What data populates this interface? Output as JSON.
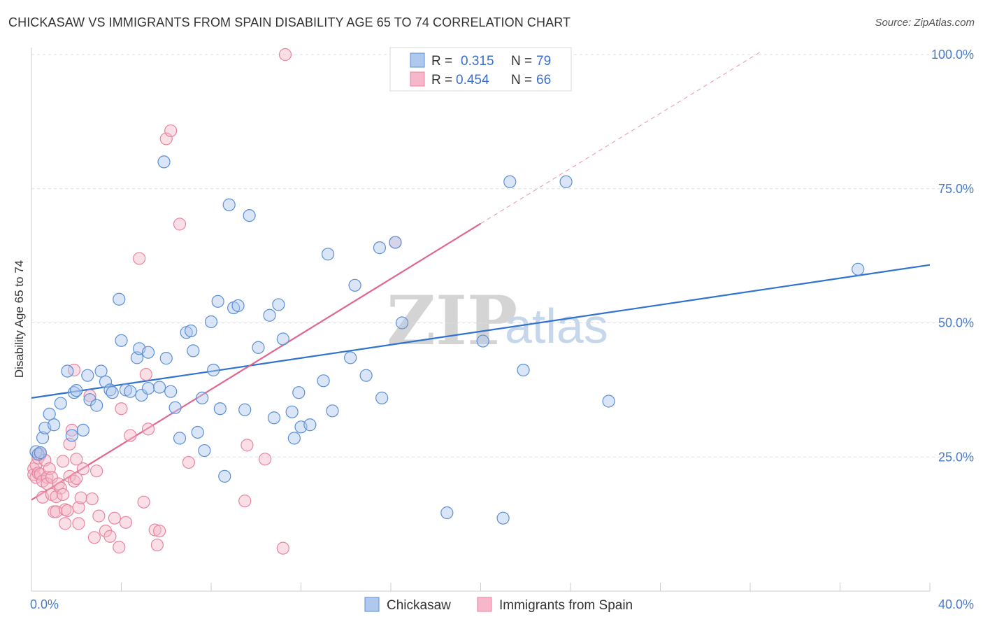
{
  "title": "CHICKASAW VS IMMIGRANTS FROM SPAIN DISABILITY AGE 65 TO 74 CORRELATION CHART",
  "source": "Source: ZipAtlas.com",
  "watermark": {
    "zip": "ZIP",
    "atlas": "atlas"
  },
  "colors": {
    "blue_fill": "#aec8ee",
    "blue_stroke": "#5b8fd6",
    "blue_line": "#2f72d0",
    "pink_fill": "#f5b7c9",
    "pink_stroke": "#e8859f",
    "pink_line": "#e0668d",
    "tick_text": "#4a7cc9",
    "grid": "#dddddd"
  },
  "legend": {
    "rows": [
      {
        "r_label": "R = ",
        "r_value": "0.315",
        "n_label": "N = ",
        "n_value": "79"
      },
      {
        "r_label": "R = ",
        "r_value": "0.454",
        "n_label": "N = ",
        "n_value": "66"
      }
    ]
  },
  "bottom_legend": [
    "Chickasaw",
    "Immigrants from Spain"
  ],
  "chart_data": {
    "type": "scatter",
    "title": "CHICKASAW VS IMMIGRANTS FROM SPAIN DISABILITY AGE 65 TO 74 CORRELATION CHART",
    "xlabel": "",
    "ylabel": "Disability Age 65 to 74",
    "xlim": [
      0,
      40
    ],
    "ylim": [
      0,
      100
    ],
    "x_tick_labels": [
      {
        "value": 0,
        "label": "0.0%"
      },
      {
        "value": 40,
        "label": "40.0%"
      }
    ],
    "y_tick_labels": [
      {
        "value": 25,
        "label": "25.0%"
      },
      {
        "value": 50,
        "label": "50.0%"
      },
      {
        "value": 75,
        "label": "75.0%"
      },
      {
        "value": 100,
        "label": "100.0%"
      }
    ],
    "series": [
      {
        "name": "Chickasaw",
        "color": "blue",
        "R": 0.315,
        "N": 79,
        "trend": {
          "x0": 0,
          "y0": 36.0,
          "x1": 40,
          "y1": 60.8
        },
        "points": [
          [
            0.2,
            26.0
          ],
          [
            0.3,
            25.5
          ],
          [
            0.4,
            25.8
          ],
          [
            0.5,
            28.6
          ],
          [
            0.6,
            30.4
          ],
          [
            0.8,
            33.0
          ],
          [
            1.0,
            31.0
          ],
          [
            1.3,
            35.0
          ],
          [
            1.6,
            41.0
          ],
          [
            1.8,
            29.0
          ],
          [
            1.9,
            37.0
          ],
          [
            2.0,
            37.4
          ],
          [
            2.3,
            30.0
          ],
          [
            2.5,
            40.2
          ],
          [
            2.6,
            35.7
          ],
          [
            2.9,
            34.6
          ],
          [
            3.1,
            41.0
          ],
          [
            3.3,
            39.0
          ],
          [
            3.5,
            37.5
          ],
          [
            3.6,
            37.0
          ],
          [
            3.9,
            54.4
          ],
          [
            4.0,
            46.7
          ],
          [
            4.2,
            37.5
          ],
          [
            4.4,
            37.2
          ],
          [
            4.7,
            43.5
          ],
          [
            4.8,
            45.2
          ],
          [
            4.9,
            36.5
          ],
          [
            5.2,
            37.8
          ],
          [
            5.2,
            44.5
          ],
          [
            5.7,
            38.0
          ],
          [
            5.9,
            80.0
          ],
          [
            6.0,
            43.4
          ],
          [
            6.2,
            37.2
          ],
          [
            6.4,
            34.2
          ],
          [
            6.6,
            28.5
          ],
          [
            6.9,
            48.2
          ],
          [
            7.1,
            48.5
          ],
          [
            7.2,
            44.8
          ],
          [
            7.4,
            29.6
          ],
          [
            7.6,
            36.0
          ],
          [
            7.7,
            26.2
          ],
          [
            8.0,
            50.2
          ],
          [
            8.1,
            41.2
          ],
          [
            8.3,
            54.0
          ],
          [
            8.4,
            34.0
          ],
          [
            8.6,
            21.4
          ],
          [
            8.8,
            72.0
          ],
          [
            9.0,
            52.8
          ],
          [
            9.2,
            53.2
          ],
          [
            9.5,
            33.8
          ],
          [
            9.7,
            70.0
          ],
          [
            10.1,
            45.4
          ],
          [
            10.6,
            51.4
          ],
          [
            10.8,
            32.3
          ],
          [
            11.0,
            53.4
          ],
          [
            11.2,
            47.0
          ],
          [
            11.6,
            33.4
          ],
          [
            11.7,
            28.5
          ],
          [
            11.9,
            37.0
          ],
          [
            12.0,
            30.6
          ],
          [
            12.4,
            31.0
          ],
          [
            13.0,
            39.2
          ],
          [
            13.2,
            62.8
          ],
          [
            13.4,
            33.6
          ],
          [
            14.2,
            43.5
          ],
          [
            14.4,
            57.0
          ],
          [
            14.9,
            40.2
          ],
          [
            15.5,
            64.0
          ],
          [
            15.6,
            36.0
          ],
          [
            16.2,
            65.0
          ],
          [
            16.5,
            50.0
          ],
          [
            18.5,
            14.6
          ],
          [
            20.1,
            46.6
          ],
          [
            21.0,
            13.6
          ],
          [
            21.3,
            76.3
          ],
          [
            21.9,
            41.2
          ],
          [
            23.8,
            76.3
          ],
          [
            25.7,
            35.4
          ],
          [
            36.8,
            60.0
          ]
        ]
      },
      {
        "name": "Immigrants from Spain",
        "color": "pink",
        "R": 0.454,
        "N": 66,
        "trend": {
          "x0": 0,
          "y0": 17.0,
          "x1": 20,
          "y1": 68.5,
          "dash_x1": 32.5,
          "dash_y1": 100.6
        },
        "points": [
          [
            0.1,
            22.8
          ],
          [
            0.1,
            21.7
          ],
          [
            0.2,
            23.5
          ],
          [
            0.2,
            21.2
          ],
          [
            0.3,
            24.8
          ],
          [
            0.3,
            22.0
          ],
          [
            0.4,
            21.8
          ],
          [
            0.4,
            25.5
          ],
          [
            0.5,
            20.5
          ],
          [
            0.5,
            17.5
          ],
          [
            0.6,
            24.4
          ],
          [
            0.7,
            21.2
          ],
          [
            0.7,
            20.0
          ],
          [
            0.8,
            22.8
          ],
          [
            0.9,
            18.0
          ],
          [
            0.9,
            21.2
          ],
          [
            1.0,
            14.8
          ],
          [
            1.1,
            14.8
          ],
          [
            1.1,
            17.6
          ],
          [
            1.2,
            20.0
          ],
          [
            1.3,
            19.2
          ],
          [
            1.4,
            24.2
          ],
          [
            1.4,
            18.0
          ],
          [
            1.5,
            12.6
          ],
          [
            1.5,
            15.2
          ],
          [
            1.6,
            15.0
          ],
          [
            1.7,
            27.4
          ],
          [
            1.7,
            21.4
          ],
          [
            1.8,
            30.0
          ],
          [
            1.9,
            41.2
          ],
          [
            1.9,
            20.5
          ],
          [
            2.0,
            21.0
          ],
          [
            2.0,
            24.6
          ],
          [
            2.1,
            12.6
          ],
          [
            2.1,
            15.6
          ],
          [
            2.2,
            17.4
          ],
          [
            2.3,
            22.8
          ],
          [
            2.6,
            36.4
          ],
          [
            2.7,
            17.2
          ],
          [
            2.8,
            10.0
          ],
          [
            2.9,
            22.4
          ],
          [
            3.0,
            14.0
          ],
          [
            3.3,
            11.2
          ],
          [
            3.5,
            10.2
          ],
          [
            3.7,
            13.6
          ],
          [
            3.9,
            8.2
          ],
          [
            4.0,
            34.0
          ],
          [
            4.2,
            12.8
          ],
          [
            4.4,
            29.0
          ],
          [
            4.8,
            62.0
          ],
          [
            5.0,
            16.6
          ],
          [
            5.1,
            40.4
          ],
          [
            5.2,
            30.2
          ],
          [
            5.5,
            11.4
          ],
          [
            5.6,
            8.6
          ],
          [
            5.7,
            11.2
          ],
          [
            6.0,
            84.3
          ],
          [
            6.2,
            85.8
          ],
          [
            6.6,
            68.4
          ],
          [
            7.0,
            24.0
          ],
          [
            9.5,
            16.8
          ],
          [
            9.6,
            27.2
          ],
          [
            10.4,
            24.6
          ],
          [
            11.2,
            8.0
          ],
          [
            11.3,
            100.0
          ],
          [
            16.2,
            65.0
          ]
        ]
      }
    ],
    "grid": true,
    "legend_position": "top-center"
  }
}
